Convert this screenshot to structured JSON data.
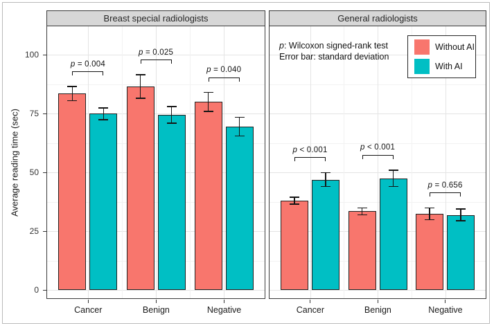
{
  "chart_data": {
    "type": "bar",
    "layout": "two-panel grouped bar chart with SD error bars and significance brackets",
    "ylabel": "Average reading time (sec)",
    "yticks": [
      0,
      25,
      50,
      75,
      100
    ],
    "ylim": [
      0,
      113
    ],
    "grid": true,
    "categories": [
      "Cancer",
      "Benign",
      "Negative"
    ],
    "panels": [
      {
        "title": "Breast special radiologists",
        "series": [
          {
            "name": "Without AI",
            "color": "#F8766D",
            "values": [
              83.5,
              86.5,
              80.0
            ],
            "sd": [
              3.0,
              5.0,
              4.0
            ]
          },
          {
            "name": "With AI",
            "color": "#00BFC4",
            "values": [
              75.0,
              74.5,
              69.5
            ],
            "sd": [
              2.5,
              3.5,
              4.0
            ]
          }
        ],
        "p_values": [
          "p = 0.004",
          "p = 0.025",
          "p = 0.040"
        ]
      },
      {
        "title": "General radiologists",
        "series": [
          {
            "name": "Without AI",
            "color": "#F8766D",
            "values": [
              38.0,
              33.5,
              32.5
            ],
            "sd": [
              1.5,
              1.5,
              2.5
            ]
          },
          {
            "name": "With AI",
            "color": "#00BFC4",
            "values": [
              47.0,
              47.5,
              32.0
            ],
            "sd": [
              3.0,
              3.5,
              2.5
            ]
          }
        ],
        "p_values": [
          "p < 0.001",
          "p < 0.001",
          "p = 0.656"
        ]
      }
    ],
    "legend": {
      "position": "top-right of right panel",
      "items": [
        {
          "label": "Without AI",
          "color": "#F8766D"
        },
        {
          "label": "With AI",
          "color": "#00BFC4"
        }
      ]
    },
    "annotations": [
      "p: Wilcoxon signed-rank test",
      "Error bar: standard deviation"
    ]
  }
}
